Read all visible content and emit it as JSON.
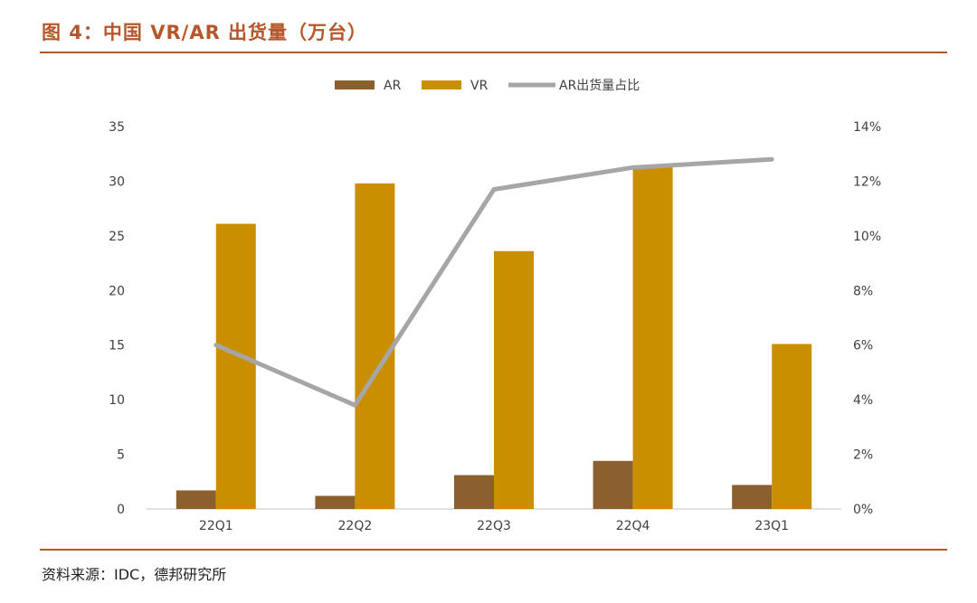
{
  "figure_title": "图 4：中国 VR/AR 出货量（万台）",
  "source": "资料来源：IDC，德邦研究所",
  "colors": {
    "ar": "#8c5f2e",
    "vr": "#c98f00",
    "share_line": "#a6a6a6",
    "accent": "#b5562b",
    "axis": "#d9d9d9",
    "text": "#404040"
  },
  "chart_data": {
    "type": "bar",
    "title": "图 4：中国 VR/AR 出货量（万台）",
    "categories": [
      "22Q1",
      "22Q2",
      "22Q3",
      "22Q4",
      "23Q1"
    ],
    "series": [
      {
        "name": "AR",
        "type": "bar",
        "axis": "left",
        "values": [
          1.7,
          1.2,
          3.1,
          4.4,
          2.2
        ]
      },
      {
        "name": "VR",
        "type": "bar",
        "axis": "left",
        "values": [
          26.1,
          29.8,
          23.6,
          31.3,
          15.1
        ]
      },
      {
        "name": "AR出货量占比",
        "type": "line",
        "axis": "right",
        "values": [
          6.0,
          3.8,
          11.7,
          12.5,
          12.8
        ]
      }
    ],
    "y_left": {
      "min": 0,
      "max": 35,
      "ticks": [
        "0",
        "5",
        "10",
        "15",
        "20",
        "25",
        "30",
        "35"
      ]
    },
    "y_right": {
      "min": 0,
      "max": 14,
      "ticks": [
        "0%",
        "2%",
        "4%",
        "6%",
        "8%",
        "10%",
        "12%",
        "14%"
      ]
    },
    "legend": [
      "AR",
      "VR",
      "AR出货量占比"
    ],
    "legend_position": "top-center"
  }
}
